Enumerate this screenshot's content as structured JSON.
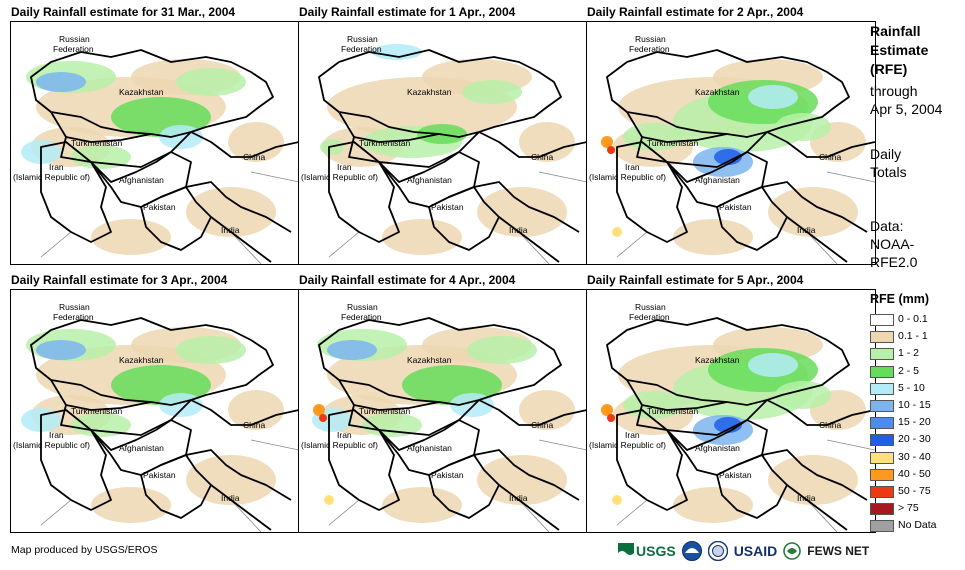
{
  "panels": [
    {
      "title": "Daily Rainfall estimate for 31 Mar., 2004",
      "rain_level": "moderate"
    },
    {
      "title": "Daily Rainfall estimate for 1 Apr., 2004",
      "rain_level": "light"
    },
    {
      "title": "Daily Rainfall estimate for 2 Apr., 2004",
      "rain_level": "heavy"
    },
    {
      "title": "Daily Rainfall estimate for 3 Apr., 2004",
      "rain_level": "moderate"
    },
    {
      "title": "Daily Rainfall estimate for 4 Apr., 2004",
      "rain_level": "moderate"
    },
    {
      "title": "Daily Rainfall estimate for 5 Apr., 2004",
      "rain_level": "heavy"
    }
  ],
  "map_labels": {
    "russia_1": "Russian",
    "russia_2": "Federation",
    "kazakhstan": "Kazakhstan",
    "turkmenistan": "Turkmenistan",
    "china": "China",
    "iran_1": "Iran",
    "iran_2": "(Islamic Republic of)",
    "afghanistan": "Afghanistan",
    "pakistan": "Pakistan",
    "india": "India"
  },
  "side": {
    "title_1": "Rainfall",
    "title_2": "Estimate",
    "title_3": "(RFE)",
    "through_1": "through",
    "through_2": "Apr 5, 2004",
    "daily_1": "Daily",
    "daily_2": "Totals",
    "data_1": "Data:",
    "data_2": "NOAA-",
    "data_3": "RFE2.0"
  },
  "legend": {
    "title": "RFE (mm)",
    "items": [
      {
        "label": "0 - 0.1",
        "color": "#ffffff"
      },
      {
        "label": "0.1 - 1",
        "color": "#ecd7b1"
      },
      {
        "label": "1 - 2",
        "color": "#b7f0a8"
      },
      {
        "label": "2 - 5",
        "color": "#66dd5a"
      },
      {
        "label": "5 - 10",
        "color": "#b3ecf7"
      },
      {
        "label": "10 - 15",
        "color": "#7db5f0"
      },
      {
        "label": "15 - 20",
        "color": "#4a8cf0"
      },
      {
        "label": "20 - 30",
        "color": "#1f5fe6"
      },
      {
        "label": "30 - 40",
        "color": "#ffe07a"
      },
      {
        "label": "40 - 50",
        "color": "#ff9a1f"
      },
      {
        "label": "50 - 75",
        "color": "#ee3a12"
      },
      {
        "label": "> 75",
        "color": "#a8191f"
      },
      {
        "label": "No Data",
        "color": "#a0a0a0"
      }
    ]
  },
  "credit": "Map produced by USGS/EROS",
  "logos": {
    "usgs": "USGS",
    "usaid": "USAID",
    "fews": "FEWS NET"
  }
}
